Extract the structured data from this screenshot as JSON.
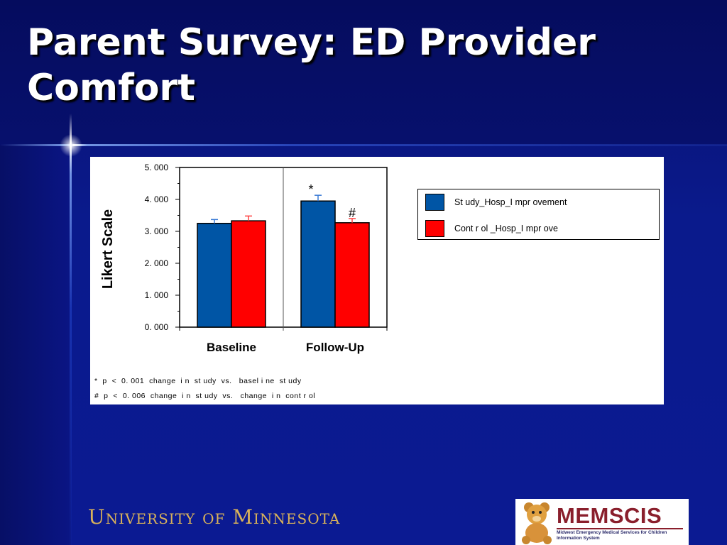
{
  "slide": {
    "title": "Parent Survey: ED Provider Comfort"
  },
  "footer": {
    "university": "University of Minnesota",
    "logo_name": "MEMSCIS",
    "logo_subtitle": "Midwest Emergency Medical Services for Children Information System"
  },
  "chart_data": {
    "type": "bar",
    "categories": [
      "Baseline",
      "Follow-Up"
    ],
    "series": [
      {
        "name": "St udy_Hosp_I mpr ovement",
        "values": [
          3.25,
          3.95
        ],
        "errors": [
          0.12,
          0.18
        ],
        "color": "#0055a5"
      },
      {
        "name": "Cont r ol _Hosp_I mpr ove",
        "values": [
          3.33,
          3.27
        ],
        "errors": [
          0.15,
          0.13
        ],
        "color": "#ff0000"
      }
    ],
    "ylabel": "Likert Scale",
    "xlabel": "",
    "ylim": [
      0,
      5
    ],
    "yticks": [
      "0. 000",
      "1. 000",
      "2. 000",
      "3. 000",
      "4. 000",
      "5. 000"
    ],
    "annotations": [
      {
        "category": "Follow-Up",
        "series": "St udy_Hosp_I mpr ovement",
        "text": "*"
      },
      {
        "category": "Follow-Up",
        "series": "Cont r ol _Hosp_I mpr ove",
        "text": "#"
      }
    ],
    "legend": "right",
    "grid": false,
    "footnotes": [
      "*  p  <  0. 001  change  i n  st udy  vs.   basel i ne  st udy",
      "#  p  <  0. 006  change  i n  st udy  vs.   change  i n  cont r ol"
    ]
  }
}
